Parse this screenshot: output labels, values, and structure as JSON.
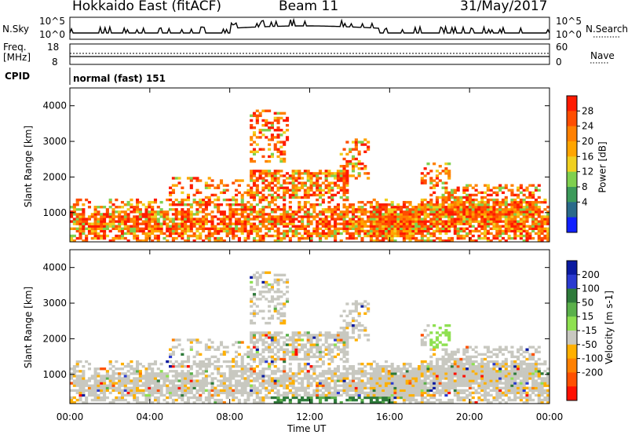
{
  "header": {
    "station": "Hokkaido East (fitACF)",
    "beam": "Beam 11",
    "date": "31/May/2017"
  },
  "summary": {
    "nsky_label": "N.Sky",
    "nsky_top": "10^5",
    "nsky_bottom": "10^0",
    "nsearch_label": "N.Search",
    "nsearch_top": "10^5",
    "nsearch_bottom": "10^0",
    "freq_label_line1": "Freq.",
    "freq_label_line2": "[MHz]",
    "freq_top": "18",
    "freq_bottom": "8",
    "nave_label": "Nave",
    "nave_top": "60",
    "nave_bottom": "0",
    "cpid_label": "CPID",
    "cpid_value": "normal (fast) 151"
  },
  "chart_data": [
    {
      "type": "heatmap",
      "quantity": "Power",
      "colorbar_label": "Power [dB]",
      "colorbar_ticks": [
        "28",
        "24",
        "20",
        "16",
        "12",
        "8",
        "4"
      ],
      "colors": [
        "#ff1a00",
        "#ff4d00",
        "#ff8000",
        "#ffa500",
        "#f0d020",
        "#7fd04f",
        "#3c9a5a",
        "#2a6a8a",
        "#1020ff"
      ],
      "ylabel": "Slant Range [km]",
      "y_ticks": [
        "4000",
        "3000",
        "2000",
        "1000"
      ],
      "ylim": [
        180,
        4500
      ],
      "xlim": [
        "00:00",
        "24:00"
      ]
    },
    {
      "type": "heatmap",
      "quantity": "Velocity",
      "colorbar_label": "Velocity [m s-1]",
      "colorbar_ticks": [
        "200",
        "100",
        "50",
        "15",
        "-15",
        "-50",
        "-100",
        "-200"
      ],
      "colors": [
        "#0a1aa0",
        "#2a3ad0",
        "#2e7a3a",
        "#5ab04a",
        "#8ee050",
        "#c8c8c0",
        "#ffb000",
        "#ff8000",
        "#ff5000",
        "#ff1000"
      ],
      "ylabel": "Slant Range [km]",
      "y_ticks": [
        "4000",
        "3000",
        "2000",
        "1000"
      ],
      "ylim": [
        180,
        4500
      ],
      "xlim": [
        "00:00",
        "24:00"
      ]
    }
  ],
  "x_axis": {
    "ticks": [
      "00:00",
      "04:00",
      "08:00",
      "12:00",
      "16:00",
      "20:00",
      "00:00"
    ],
    "label": "Time UT"
  }
}
